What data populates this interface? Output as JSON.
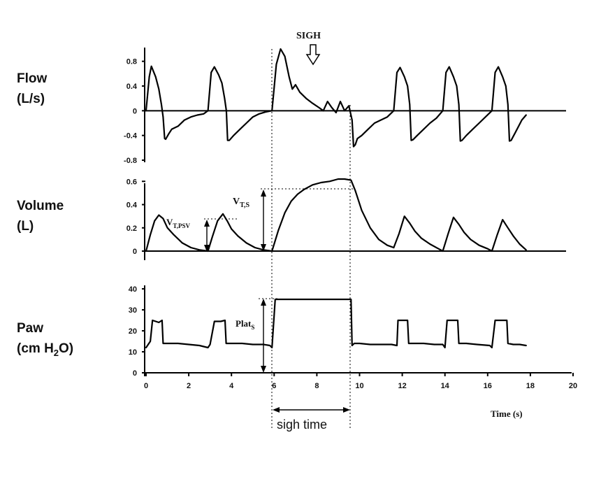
{
  "chart_data": {
    "type": "line",
    "x_axis": {
      "label": "Time (s)",
      "ticks": [
        0,
        2,
        4,
        6,
        8,
        10,
        12,
        14,
        16,
        18,
        20
      ],
      "range": [
        0,
        20
      ]
    },
    "panels": [
      {
        "id": "flow",
        "label_line1": "Flow",
        "label_line2": "(L/s)",
        "ylim": [
          -0.8,
          1.0
        ],
        "ticks": [
          0.8,
          0.4,
          0,
          -0.4,
          -0.8
        ],
        "tick_labels": [
          "0.8",
          "0.4",
          "0",
          "-0.4",
          "-0.8"
        ],
        "zero_line": true,
        "series": [
          {
            "x": [
              0,
              0.15,
              0.25,
              0.45,
              0.6,
              0.72,
              0.8,
              0.87,
              0.92,
              1.05,
              1.2,
              1.5,
              1.8,
              2.1,
              2.4,
              2.7,
              2.9
            ],
            "y": [
              0,
              0.55,
              0.72,
              0.55,
              0.35,
              0.1,
              -0.1,
              -0.45,
              -0.46,
              -0.38,
              -0.3,
              -0.25,
              -0.15,
              -0.1,
              -0.07,
              -0.05,
              0
            ]
          },
          {
            "x": [
              2.9,
              3.05,
              3.2,
              3.4,
              3.55,
              3.68,
              3.76,
              3.82,
              3.9,
              4.1,
              4.4,
              4.7,
              5.0,
              5.3,
              5.6,
              5.9
            ],
            "y": [
              0,
              0.62,
              0.71,
              0.58,
              0.45,
              0.2,
              0,
              -0.48,
              -0.48,
              -0.4,
              -0.3,
              -0.2,
              -0.1,
              -0.05,
              -0.02,
              0
            ]
          },
          {
            "x": [
              5.9,
              6.1,
              6.3,
              6.5,
              6.7,
              6.85,
              7.0,
              7.2,
              7.5,
              7.8,
              8.1,
              8.3,
              8.5,
              8.7,
              8.9,
              9.1,
              9.3,
              9.5,
              9.65,
              9.72,
              9.8,
              9.9,
              10.1,
              10.4,
              10.7,
              11.0,
              11.3,
              11.6
            ],
            "y": [
              0,
              0.75,
              1.0,
              0.88,
              0.55,
              0.35,
              0.42,
              0.3,
              0.2,
              0.12,
              0.05,
              0.0,
              0.15,
              0.05,
              -0.03,
              0.15,
              0.0,
              0.08,
              -0.15,
              -0.58,
              -0.55,
              -0.45,
              -0.4,
              -0.3,
              -0.2,
              -0.15,
              -0.1,
              0
            ]
          },
          {
            "x": [
              11.6,
              11.75,
              11.9,
              12.1,
              12.25,
              12.35,
              12.42,
              12.5,
              12.7,
              13.0,
              13.3,
              13.6,
              13.9
            ],
            "y": [
              0,
              0.62,
              0.7,
              0.55,
              0.4,
              0.1,
              -0.48,
              -0.47,
              -0.4,
              -0.3,
              -0.2,
              -0.12,
              0
            ]
          },
          {
            "x": [
              13.9,
              14.05,
              14.2,
              14.4,
              14.55,
              14.65,
              14.72,
              14.8,
              15.0,
              15.3,
              15.6,
              15.9,
              16.2
            ],
            "y": [
              0,
              0.62,
              0.71,
              0.55,
              0.4,
              0.1,
              -0.49,
              -0.48,
              -0.4,
              -0.3,
              -0.2,
              -0.1,
              0
            ]
          },
          {
            "x": [
              16.2,
              16.35,
              16.5,
              16.7,
              16.85,
              16.95,
              17.02,
              17.1,
              17.3,
              17.6,
              17.8
            ],
            "y": [
              0,
              0.62,
              0.71,
              0.55,
              0.4,
              0.1,
              -0.49,
              -0.48,
              -0.35,
              -0.15,
              -0.07
            ]
          }
        ]
      },
      {
        "id": "volume",
        "label_line1": "Volume",
        "label_line2": "(L)",
        "ylim": [
          0,
          0.65
        ],
        "ticks": [
          0.6,
          0.4,
          0.2,
          0
        ],
        "tick_labels": [
          "0.6",
          "0.4",
          "0.2",
          "0"
        ],
        "zero_line": true,
        "series": [
          {
            "x": [
              0,
              0.2,
              0.4,
              0.6,
              0.8,
              1.0,
              1.3,
              1.7,
              2.1,
              2.5,
              2.9
            ],
            "y": [
              0,
              0.14,
              0.26,
              0.31,
              0.28,
              0.2,
              0.14,
              0.07,
              0.03,
              0.01,
              0
            ]
          },
          {
            "x": [
              2.9,
              3.1,
              3.35,
              3.6,
              3.8,
              4.0,
              4.3,
              4.7,
              5.1,
              5.5,
              5.9
            ],
            "y": [
              0,
              0.12,
              0.26,
              0.32,
              0.26,
              0.19,
              0.13,
              0.07,
              0.03,
              0.01,
              0
            ]
          },
          {
            "x": [
              5.9,
              6.2,
              6.5,
              6.8,
              7.1,
              7.4,
              7.8,
              8.2,
              8.6,
              9.0,
              9.3,
              9.6,
              9.8,
              10.1,
              10.5,
              10.9,
              11.3,
              11.6
            ],
            "y": [
              0,
              0.18,
              0.33,
              0.43,
              0.49,
              0.53,
              0.57,
              0.59,
              0.6,
              0.62,
              0.62,
              0.61,
              0.52,
              0.35,
              0.2,
              0.1,
              0.05,
              0.03
            ]
          },
          {
            "x": [
              11.6,
              11.85,
              12.1,
              12.35,
              12.6,
              12.9,
              13.3,
              13.7,
              13.9
            ],
            "y": [
              0.03,
              0.15,
              0.3,
              0.24,
              0.17,
              0.11,
              0.06,
              0.02,
              0
            ]
          },
          {
            "x": [
              13.9,
              14.15,
              14.4,
              14.65,
              14.9,
              15.2,
              15.6,
              16.0,
              16.2
            ],
            "y": [
              0,
              0.15,
              0.29,
              0.23,
              0.16,
              0.1,
              0.05,
              0.02,
              0
            ]
          },
          {
            "x": [
              16.2,
              16.45,
              16.7,
              16.95,
              17.2,
              17.5,
              17.8
            ],
            "y": [
              0,
              0.14,
              0.27,
              0.2,
              0.13,
              0.06,
              0.01
            ]
          }
        ]
      },
      {
        "id": "paw",
        "label_line1": "Paw",
        "label_line2_main": "(cm H",
        "label_line2_sub": "2",
        "label_line2_end": "O)",
        "ylim": [
          0,
          40
        ],
        "ticks": [
          40,
          30,
          20,
          10,
          0
        ],
        "tick_labels": [
          "40",
          "30",
          "20",
          "10",
          "0"
        ],
        "zero_line": true,
        "series": [
          {
            "x": [
              0,
              0.2,
              0.3,
              0.6,
              0.75,
              0.8,
              0.9,
              1.5,
              2.0,
              2.5,
              2.9,
              3.0,
              3.2,
              3.5,
              3.7,
              3.75,
              3.8,
              4.5,
              5.0,
              5.5,
              5.8,
              5.9,
              6.05,
              6.1,
              7.0,
              8.0,
              9.0,
              9.6,
              9.65,
              9.75,
              10.0,
              10.5,
              11.0,
              11.5,
              11.75,
              11.8,
              12.25,
              12.3,
              12.5,
              13.0,
              13.5,
              13.9,
              14.0,
              14.1,
              14.6,
              14.65,
              15.0,
              15.5,
              16.1,
              16.2,
              16.35,
              16.9,
              16.95,
              17.2,
              17.5,
              17.8
            ],
            "y": [
              12,
              15,
              25,
              24,
              25,
              14,
              14,
              14,
              13.5,
              13,
              12,
              13.5,
              24.5,
              24.5,
              25,
              14,
              14,
              14,
              13.5,
              13.5,
              13,
              12,
              35,
              35,
              35,
              35,
              35,
              35,
              13,
              14,
              14,
              13.5,
              13.5,
              13.5,
              13,
              25,
              25,
              14,
              14,
              14,
              13.5,
              13.5,
              12,
              25,
              25,
              14,
              14,
              13.5,
              13,
              12,
              25,
              25,
              14,
              13.5,
              13.5,
              13
            ]
          }
        ]
      }
    ],
    "annotations": {
      "sigh": "SIGH",
      "vts_main": "V",
      "vts_sub": "T,S",
      "vtpsv_main": "V",
      "vtpsv_sub": "T,PSV",
      "plat_main": "Plat",
      "plat_sub": "S",
      "sigh_time": "sigh time"
    }
  }
}
